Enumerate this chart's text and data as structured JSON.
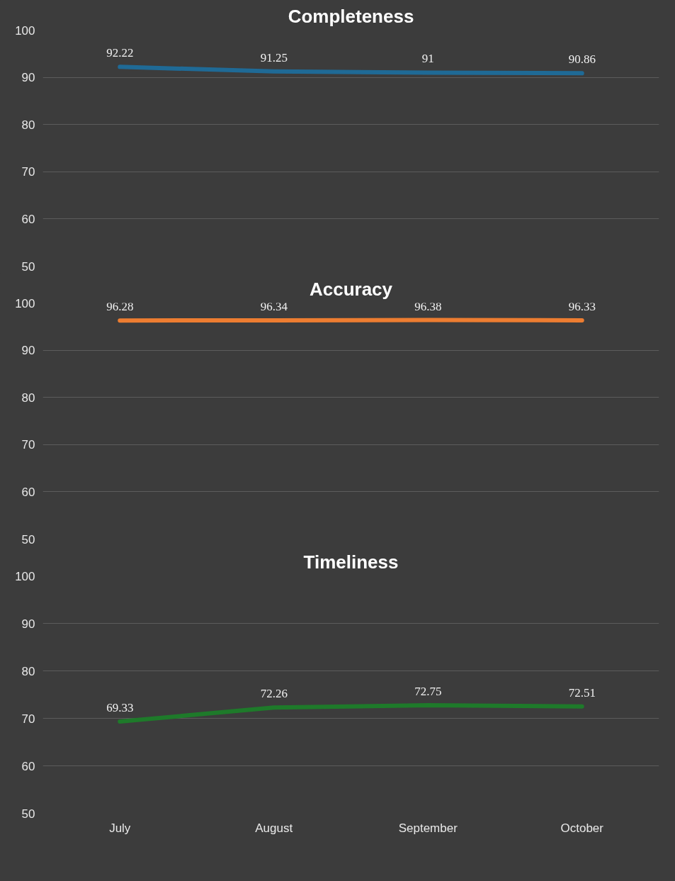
{
  "chart_data": [
    {
      "type": "line",
      "title": "Completeness",
      "categories": [
        null,
        null,
        null,
        null
      ],
      "series": [
        {
          "color": "#1f6a96",
          "values": [
            92.22,
            91.25,
            91,
            90.86
          ]
        }
      ],
      "ylim": [
        50,
        100
      ],
      "yticks": [
        50,
        60,
        70,
        80,
        90,
        100
      ],
      "grid": "y",
      "data_labels": true,
      "line_style": "solid",
      "marker": "none"
    },
    {
      "type": "line",
      "title": "Accuracy",
      "categories": [
        null,
        null,
        null,
        null
      ],
      "series": [
        {
          "color": "#ed7d31",
          "values": [
            96.28,
            96.34,
            96.38,
            96.33
          ]
        }
      ],
      "ylim": [
        50,
        100
      ],
      "yticks": [
        50,
        60,
        70,
        80,
        90,
        100
      ],
      "grid": "y",
      "data_labels": true,
      "line_style": "solid",
      "marker": "none"
    },
    {
      "type": "line",
      "title": "Timeliness",
      "categories": [
        "July",
        "August",
        "September",
        "October"
      ],
      "series": [
        {
          "color": "#1e7a2a",
          "values": [
            69.33,
            72.26,
            72.75,
            72.51
          ]
        }
      ],
      "ylim": [
        50,
        100
      ],
      "yticks": [
        50,
        60,
        70,
        80,
        90,
        100
      ],
      "grid": "y",
      "data_labels": true,
      "line_style": "solid",
      "marker": "none"
    }
  ]
}
